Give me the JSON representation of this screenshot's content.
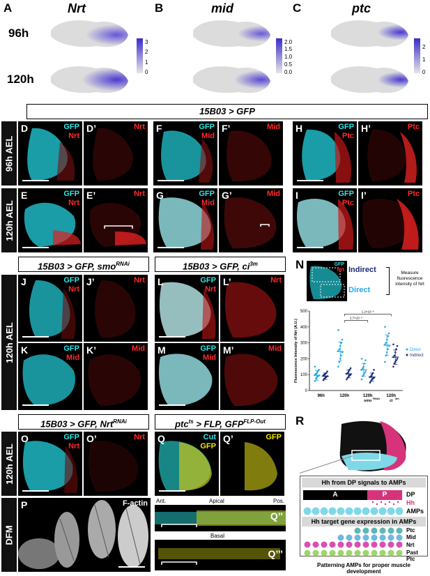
{
  "panel_letters": {
    "A": "A",
    "B": "B",
    "C": "C",
    "D": "D",
    "D2": "D’",
    "E": "E",
    "E2": "E’",
    "F": "F",
    "F2": "F’",
    "G": "G",
    "G2": "G’",
    "H": "H",
    "H2": "H’",
    "I": "I",
    "I2": "I’",
    "J": "J",
    "J2": "J’",
    "K": "K",
    "K2": "K’",
    "L": "L",
    "L2": "L’",
    "M": "M",
    "M2": "M’",
    "N": "N",
    "O": "O",
    "O2": "O’",
    "P": "P",
    "Q": "Q",
    "Q2": "Q’",
    "Q3": "Q’’",
    "Q4": "Q’’’",
    "R": "R"
  },
  "umap": {
    "genes": [
      "Nrt",
      "mid",
      "ptc"
    ],
    "timepoints": [
      "96h",
      "120h"
    ],
    "scale_A": [
      "3",
      "2",
      "1",
      "0"
    ],
    "scale_B": [
      "2.0",
      "1.5",
      "1.0",
      "0.5",
      "0.0"
    ],
    "scale_C": [
      "2",
      "1",
      "0"
    ]
  },
  "banners": {
    "top": "15B03 > GFP",
    "smo_prefix": "15B03 > GFP, smo",
    "smo_sup": "RNAi",
    "ci_prefix": "15B03 > GFP, ci",
    "ci_sup": "3m",
    "nrt_prefix": "15B03 > GFP, Nrt",
    "nrt_sup": "RNAi",
    "flp_prefix": "ptc",
    "flp_sup1": "ts",
    "flp_mid": " > FLP, GFP",
    "flp_sup2": "FLP-Out"
  },
  "row_labels": {
    "r96": "96h AEL",
    "r120a": "120h AEL",
    "r120b": "120h AEL",
    "r120c": "120h AEL",
    "dfm": "DFM"
  },
  "stain": {
    "gfp": "GFP",
    "nrt": "Nrt",
    "mid": "Mid",
    "ptc": "Ptc",
    "cut": "Cut",
    "factin": "F-actin"
  },
  "q_labels": {
    "ant": "Ant.",
    "apical": "Apical",
    "pos": "Pos.",
    "basal": "Basal"
  },
  "n_inset": {
    "gfp": "GFP",
    "nrt": "Nrt",
    "indirect": "Indirect",
    "direct": "Direct",
    "measure": "Measure fluorescence intensity of Nrt"
  },
  "chart_data": {
    "type": "scatter",
    "ylabel": "Fluorescence Intensity of Nrt (A.U.)",
    "ylim": [
      0,
      500
    ],
    "yticks": [
      "0",
      "100",
      "200",
      "300",
      "400",
      "500"
    ],
    "categories": [
      "96h",
      "120h",
      "120h smoRNAi",
      "120h ci3m"
    ],
    "category_labels": [
      {
        "main": "96h",
        "sub": ""
      },
      {
        "main": "120h",
        "sub": ""
      },
      {
        "main": "120h",
        "sub": "smo",
        "sup": "RNAi"
      },
      {
        "main": "120h",
        "sub": "ci",
        "sup": "3m"
      }
    ],
    "series": [
      {
        "name": "Direct",
        "color": "#29a8e0",
        "means": [
          95,
          245,
          130,
          285
        ],
        "sd": [
          30,
          60,
          40,
          65
        ],
        "points": [
          [
            60,
            75,
            85,
            90,
            95,
            100,
            105,
            110,
            120,
            130,
            150
          ],
          [
            150,
            180,
            200,
            220,
            240,
            250,
            260,
            280,
            300,
            320,
            380
          ],
          [
            70,
            90,
            100,
            110,
            120,
            130,
            140,
            150,
            170,
            190,
            200
          ],
          [
            180,
            220,
            240,
            260,
            280,
            290,
            300,
            320,
            340,
            360,
            400
          ]
        ]
      },
      {
        "name": "Indirect",
        "color": "#1b2a7a",
        "means": [
          90,
          105,
          85,
          210
        ],
        "sd": [
          20,
          25,
          25,
          45
        ],
        "points": [
          [
            65,
            75,
            80,
            85,
            90,
            95,
            100,
            105,
            110,
            120
          ],
          [
            70,
            80,
            90,
            95,
            100,
            105,
            110,
            120,
            130,
            140
          ],
          [
            50,
            60,
            70,
            75,
            80,
            85,
            90,
            100,
            110,
            130
          ],
          [
            150,
            170,
            180,
            190,
            200,
            210,
            220,
            240,
            260,
            280,
            290
          ]
        ]
      }
    ],
    "annotations": [
      "2.7×10⁻⁵",
      "1.2×10⁻⁸"
    ],
    "legend": [
      "Direct",
      "Indirect"
    ]
  },
  "r_panel": {
    "head1": "Hh from DP signals to AMPs",
    "head2": "Hh target gene expression in AMPs",
    "a": "A",
    "p": "P",
    "dp": "DP",
    "hh": "Hh",
    "amps": "AMPs",
    "ptc": "Ptc",
    "mid": "Mid",
    "nrt": "Nrt",
    "pastptc": "Past Ptc",
    "caption": "Patterning AMPs for proper muscle development"
  },
  "colors": {
    "cyan": "#2ee6e6",
    "red": "#ff2a2a",
    "yellow": "#f2e600",
    "umap_high": "#3b2cc9",
    "direct": "#29a8e0",
    "indirect": "#1b2a7a",
    "magenta": "#d6337a",
    "amp_cyan": "#7fd8e8",
    "amp_green": "#9fd66a",
    "amp_teal": "#5fb8b0"
  }
}
